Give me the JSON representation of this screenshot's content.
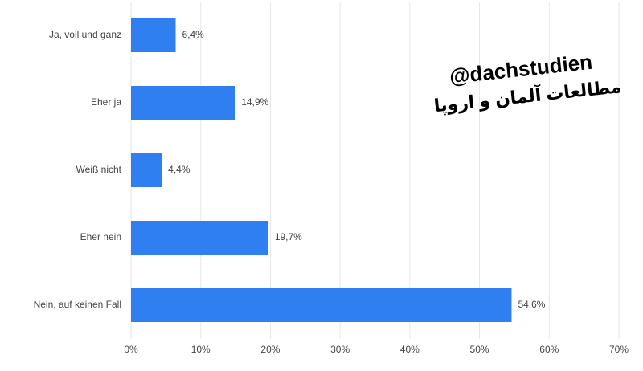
{
  "chart_data": {
    "type": "hbar",
    "categories": [
      "Ja, voll und ganz",
      "Eher ja",
      "Weiß nicht",
      "Eher nein",
      "Nein, auf keinen Fall"
    ],
    "values": [
      6.4,
      14.9,
      4.4,
      19.7,
      54.6
    ],
    "value_labels": [
      "6,4%",
      "14,9%",
      "4,4%",
      "19,7%",
      "54,6%"
    ],
    "color": "#2f7ff0",
    "xlim": [
      0,
      70
    ],
    "xticks": [
      {
        "value": 0,
        "label": "0%"
      },
      {
        "value": 10,
        "label": "10%"
      },
      {
        "value": 20,
        "label": "20%"
      },
      {
        "value": 30,
        "label": "30%"
      },
      {
        "value": 40,
        "label": "40%"
      },
      {
        "value": 50,
        "label": "50%"
      },
      {
        "value": 60,
        "label": "60%"
      },
      {
        "value": 70,
        "label": "70%"
      }
    ],
    "grid": true,
    "annotations": [
      "@dachstudien",
      "مطالعات آلمان و اروپا"
    ]
  }
}
